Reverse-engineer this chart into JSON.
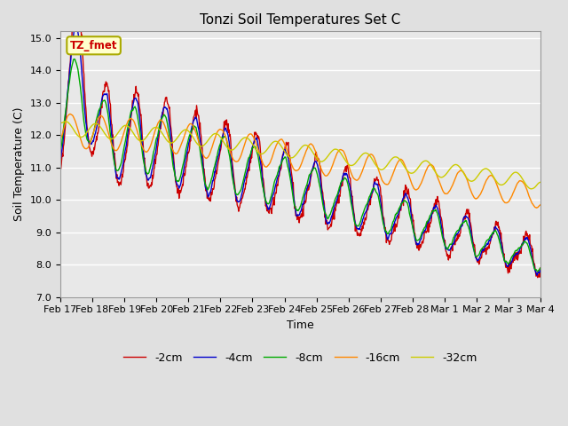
{
  "title": "Tonzi Soil Temperatures Set C",
  "xlabel": "Time",
  "ylabel": "Soil Temperature (C)",
  "ylim": [
    7.0,
    15.2
  ],
  "yticks": [
    7.0,
    8.0,
    9.0,
    10.0,
    11.0,
    12.0,
    13.0,
    14.0,
    15.0
  ],
  "date_labels": [
    "Feb 17",
    "Feb 18",
    "Feb 19",
    "Feb 20",
    "Feb 21",
    "Feb 22",
    "Feb 23",
    "Feb 24",
    "Feb 25",
    "Feb 26",
    "Feb 27",
    "Feb 28",
    "Mar 1",
    "Mar 2",
    "Mar 3",
    "Mar 4"
  ],
  "legend_labels": [
    "-2cm",
    "-4cm",
    "-8cm",
    "-16cm",
    "-32cm"
  ],
  "legend_colors": [
    "#cc0000",
    "#0000cc",
    "#00aa00",
    "#ff8800",
    "#cccc00"
  ],
  "annotation_text": "TZ_fmet",
  "annotation_facecolor": "#ffffcc",
  "annotation_edgecolor": "#aaaa00",
  "annotation_textcolor": "#cc0000",
  "bg_color": "#e0e0e0",
  "plot_bg_color": "#e8e8e8",
  "grid_color": "#ffffff",
  "n_points": 960
}
